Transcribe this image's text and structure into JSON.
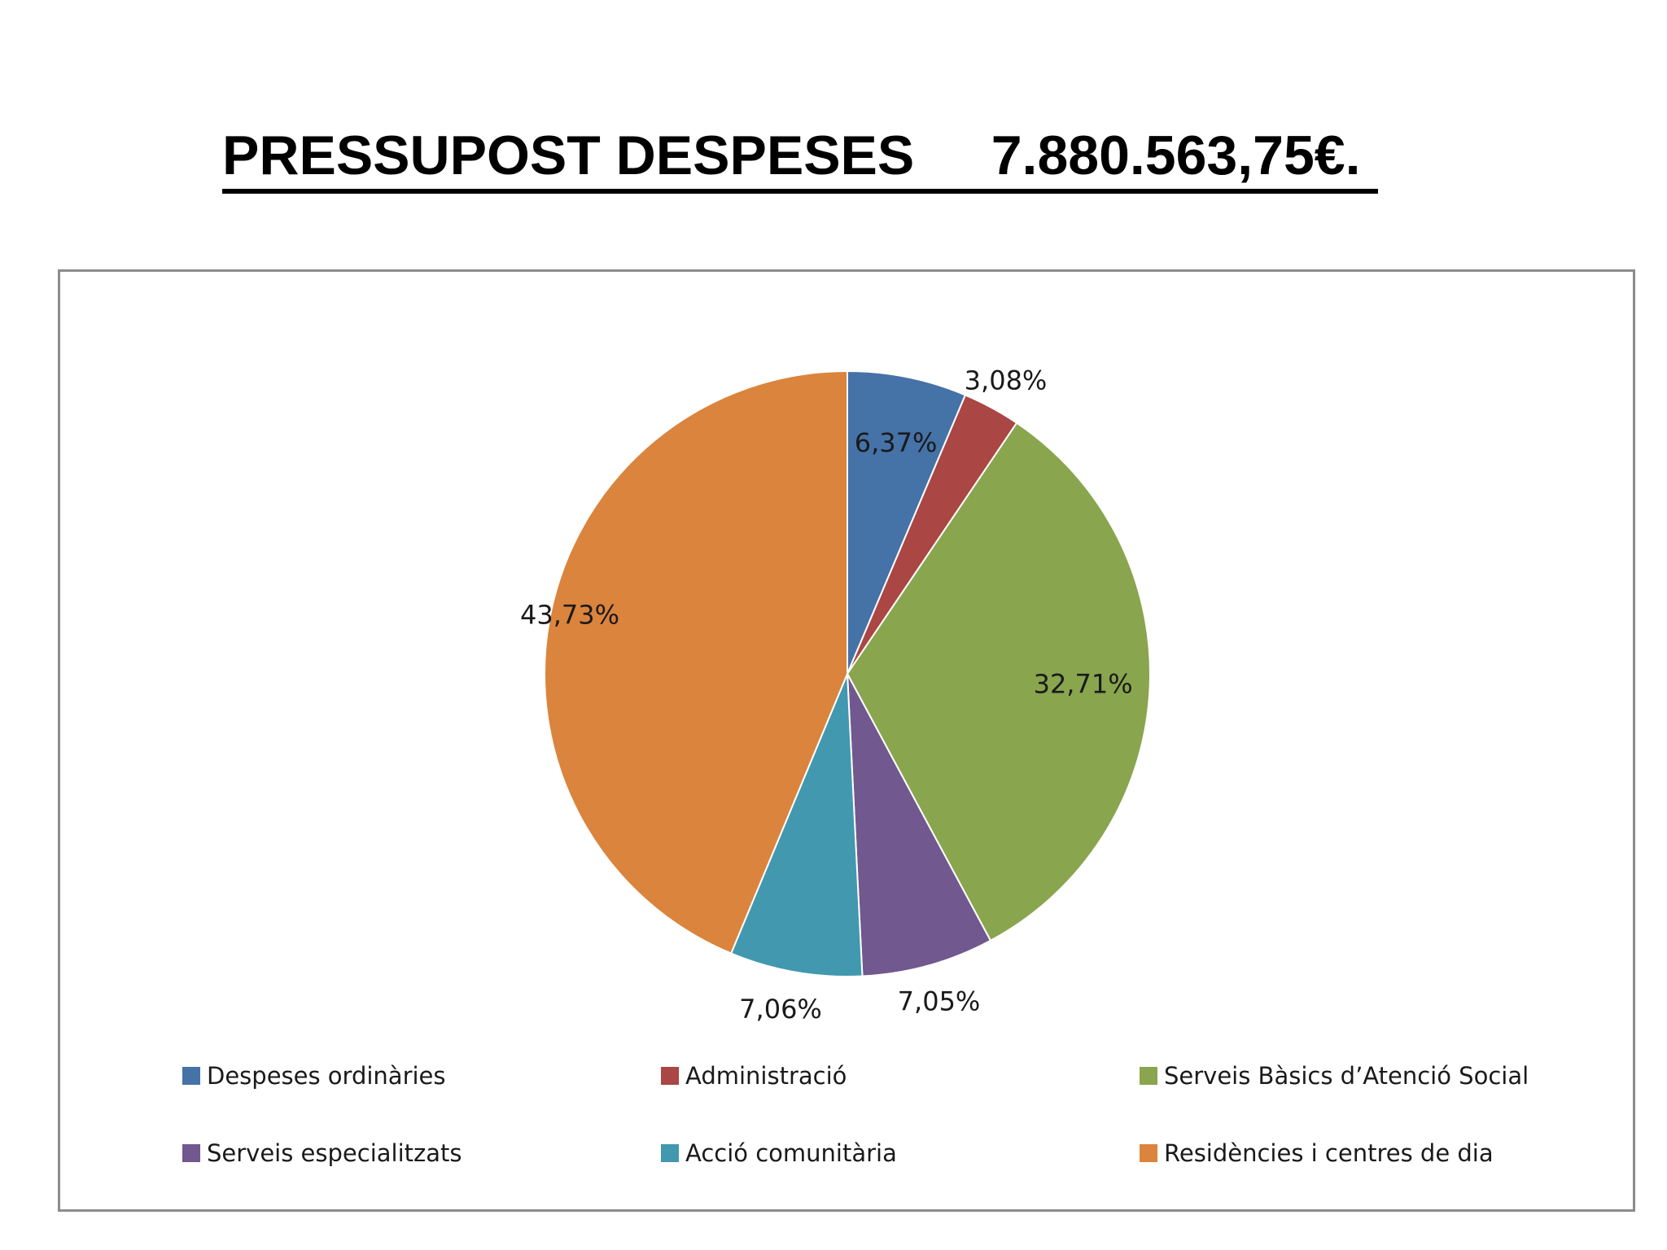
{
  "page": {
    "title": "PRESSUPOST DESPESES     7.880.563,75€."
  },
  "chart_data": {
    "type": "pie",
    "title": "",
    "slices": [
      {
        "name": "Despeses ordinàries",
        "value": 6.37,
        "label": "6,37%",
        "color": "#4572a7"
      },
      {
        "name": "Administració",
        "value": 3.08,
        "label": "3,08%",
        "color": "#aa4643"
      },
      {
        "name": "Serveis Bàsics d’Atenció Social",
        "value": 32.71,
        "label": "32,71%",
        "color": "#89a54e"
      },
      {
        "name": "Serveis especialitzats",
        "value": 7.05,
        "label": "7,05%",
        "color": "#71588f"
      },
      {
        "name": "Acció comunitària",
        "value": 7.06,
        "label": "7,06%",
        "color": "#4198af"
      },
      {
        "name": "Residències i centres de dia",
        "value": 43.73,
        "label": "43,73%",
        "color": "#db843d"
      }
    ],
    "legend_position": "bottom"
  }
}
